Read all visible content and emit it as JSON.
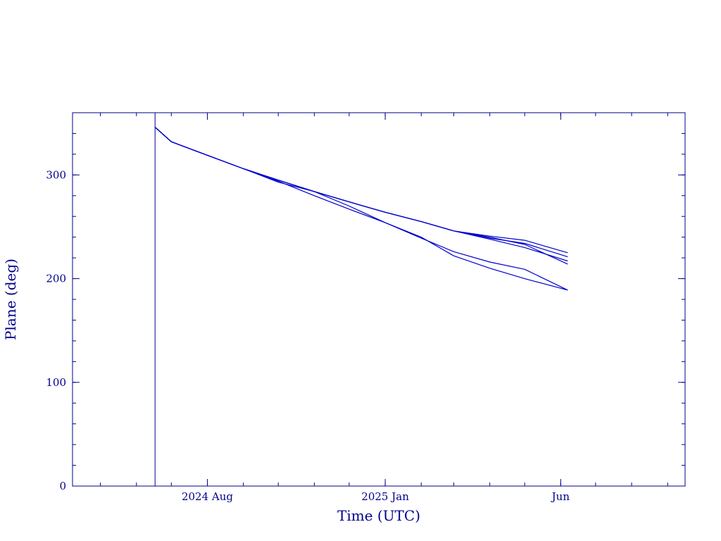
{
  "colors": {
    "axis": "#00008b",
    "series": "#0000cd",
    "background": "#ffffff"
  },
  "chart_data": {
    "type": "line",
    "title": "",
    "xlabel": "Time (UTC)",
    "ylabel": "Plane (deg)",
    "grid": false,
    "legend": "none",
    "x_axis_kind": "date",
    "xlim": [
      "2024-04-07",
      "2025-09-16"
    ],
    "ylim": [
      0,
      360
    ],
    "x_tick_labels": [
      {
        "label": "2024 Aug",
        "date": "2024-08-01"
      },
      {
        "label": "2025 Jan",
        "date": "2025-01-01"
      },
      {
        "label": "Jun",
        "date": "2025-06-01"
      }
    ],
    "y_tick_labels": [
      {
        "label": "0",
        "value": 0
      },
      {
        "label": "100",
        "value": 100
      },
      {
        "label": "200",
        "value": 200
      },
      {
        "label": "300",
        "value": 300
      }
    ],
    "x_minor_tick_dates": [
      "2024-05-01",
      "2024-06-01",
      "2024-07-01",
      "2024-08-01",
      "2024-09-01",
      "2024-10-01",
      "2024-11-01",
      "2024-12-01",
      "2025-01-01",
      "2025-02-01",
      "2025-03-01",
      "2025-04-01",
      "2025-05-01",
      "2025-06-01",
      "2025-07-01",
      "2025-08-01",
      "2025-09-01"
    ],
    "y_minor_step": 20,
    "vertical_marker": {
      "date": "2024-06-17"
    },
    "series": [
      {
        "x": [
          "2024-06-17",
          "2024-07-01",
          "2024-08-01",
          "2024-09-01",
          "2024-10-01",
          "2024-11-01",
          "2024-12-01",
          "2025-01-01",
          "2025-02-01",
          "2025-03-01",
          "2025-04-01",
          "2025-05-01",
          "2025-06-07"
        ],
        "values": [
          346,
          332,
          319,
          306,
          294,
          280,
          267,
          254,
          239,
          226,
          216,
          209,
          189
        ]
      },
      {
        "x": [
          "2024-06-17",
          "2024-07-01",
          "2024-08-01",
          "2024-09-01",
          "2024-10-01",
          "2024-11-01",
          "2024-12-01",
          "2025-01-01",
          "2025-02-01",
          "2025-03-01",
          "2025-04-01",
          "2025-05-01",
          "2025-06-07"
        ],
        "values": [
          346,
          332,
          319,
          306,
          293,
          284,
          270,
          254,
          240,
          222,
          210,
          200,
          189
        ]
      },
      {
        "x": [
          "2024-06-17",
          "2024-07-01",
          "2024-08-01",
          "2024-09-01",
          "2024-10-01",
          "2024-11-01",
          "2024-12-01",
          "2025-01-01",
          "2025-02-01",
          "2025-03-01",
          "2025-04-01",
          "2025-05-01",
          "2025-06-07"
        ],
        "values": [
          346,
          332,
          319,
          306,
          295,
          284,
          274,
          264,
          255,
          246,
          240,
          233,
          214
        ]
      },
      {
        "x": [
          "2024-06-17",
          "2024-07-01",
          "2024-08-01",
          "2024-09-01",
          "2024-10-01",
          "2024-11-01",
          "2024-12-01",
          "2025-01-01",
          "2025-02-01",
          "2025-03-01",
          "2025-04-01",
          "2025-05-01",
          "2025-06-07"
        ],
        "values": [
          346,
          332,
          319,
          306,
          295,
          284,
          274,
          264,
          255,
          246,
          238,
          230,
          217
        ]
      },
      {
        "x": [
          "2024-06-17",
          "2024-07-01",
          "2024-08-01",
          "2024-09-01",
          "2024-10-01",
          "2024-11-01",
          "2024-12-01",
          "2025-01-01",
          "2025-02-01",
          "2025-03-01",
          "2025-04-01",
          "2025-05-01",
          "2025-06-07"
        ],
        "values": [
          346,
          332,
          319,
          306,
          295,
          284,
          274,
          264,
          255,
          246,
          239,
          234,
          221
        ]
      },
      {
        "x": [
          "2024-06-17",
          "2024-07-01",
          "2024-08-01",
          "2024-09-01",
          "2024-10-01",
          "2024-11-01",
          "2024-12-01",
          "2025-01-01",
          "2025-02-01",
          "2025-03-01",
          "2025-04-01",
          "2025-05-01",
          "2025-06-07"
        ],
        "values": [
          346,
          332,
          319,
          306,
          295,
          284,
          274,
          264,
          255,
          246,
          241,
          237,
          225
        ]
      }
    ]
  }
}
